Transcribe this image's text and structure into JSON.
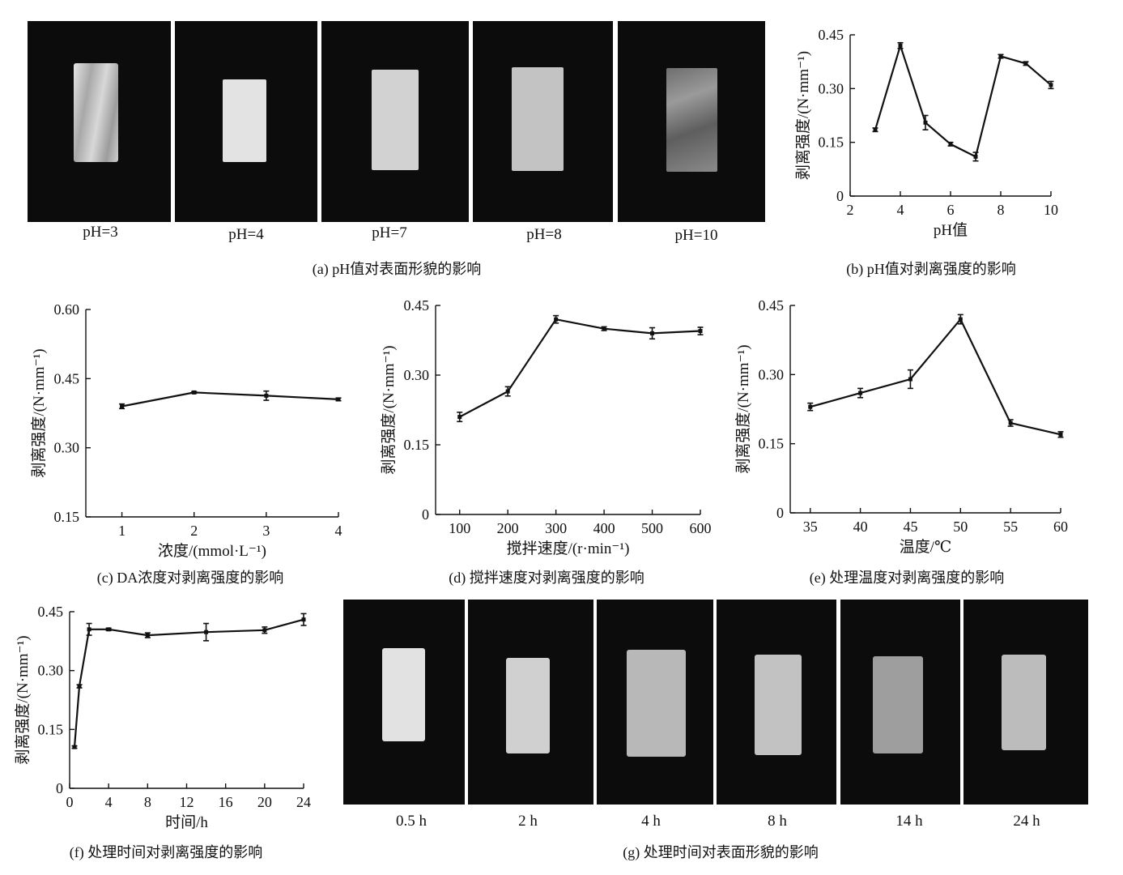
{
  "captions": {
    "a": "(a) pH值对表面形貌的影响",
    "b": "(b) pH值对剥离强度的影响",
    "c": "(c) DA浓度对剥离强度的影响",
    "d": "(d) 搅拌速度对剥离强度的影响",
    "e": "(e) 处理温度对剥离强度的影响",
    "f": "(f) 处理时间对剥离强度的影响",
    "g": "(g) 处理时间对表面形貌的影响"
  },
  "photos_a": [
    "pH=3",
    "pH=4",
    "pH=7",
    "pH=8",
    "pH=10"
  ],
  "photos_g": [
    "0.5 h",
    "2 h",
    "4 h",
    "8 h",
    "14 h",
    "24 h"
  ],
  "chart_data": [
    {
      "id": "b",
      "type": "line",
      "xlabel": "pH值",
      "ylabel": "剥离强度/(N·mm⁻¹)",
      "xlim": [
        2,
        10
      ],
      "xticks": [
        2,
        4,
        6,
        8,
        10
      ],
      "ylim": [
        0,
        0.45
      ],
      "yticks": [
        "0",
        "0.15",
        "0.30",
        "0.45"
      ],
      "x": [
        3,
        4,
        5,
        6,
        7,
        8,
        9,
        10
      ],
      "y": [
        0.185,
        0.42,
        0.205,
        0.145,
        0.11,
        0.39,
        0.37,
        0.31
      ],
      "err": [
        0.005,
        0.008,
        0.02,
        0.005,
        0.012,
        0.005,
        0.005,
        0.01
      ]
    },
    {
      "id": "c",
      "type": "line",
      "xlabel": "浓度/(mmol·L⁻¹)",
      "ylabel": "剥离强度/(N·mm⁻¹)",
      "xlim": [
        0.5,
        4
      ],
      "xticks": [
        1,
        2,
        3,
        4
      ],
      "ylim": [
        0.15,
        0.6
      ],
      "yticks": [
        "0.15",
        "0.30",
        "0.45",
        "0.60"
      ],
      "x": [
        1,
        2,
        3,
        4
      ],
      "y": [
        0.39,
        0.42,
        0.413,
        0.405
      ],
      "err": [
        0.005,
        0.002,
        0.01,
        0.003
      ]
    },
    {
      "id": "d",
      "type": "line",
      "xlabel": "搅拌速度/(r·min⁻¹)",
      "ylabel": "剥离强度/(N·mm⁻¹)",
      "xlim": [
        50,
        600
      ],
      "xticks": [
        100,
        200,
        300,
        400,
        500,
        600
      ],
      "ylim": [
        0,
        0.45
      ],
      "yticks": [
        "0",
        "0.15",
        "0.30",
        "0.45"
      ],
      "x": [
        100,
        200,
        300,
        400,
        500,
        600
      ],
      "y": [
        0.21,
        0.265,
        0.42,
        0.4,
        0.39,
        0.395
      ],
      "err": [
        0.01,
        0.01,
        0.008,
        0.004,
        0.012,
        0.008
      ]
    },
    {
      "id": "e",
      "type": "line",
      "xlabel": "温度/℃",
      "ylabel": "剥离强度/(N·mm⁻¹)",
      "xlim": [
        33,
        60
      ],
      "xticks": [
        35,
        40,
        45,
        50,
        55,
        60
      ],
      "ylim": [
        0,
        0.45
      ],
      "yticks": [
        "0",
        "0.15",
        "0.30",
        "0.45"
      ],
      "x": [
        35,
        40,
        45,
        50,
        55,
        60
      ],
      "y": [
        0.23,
        0.26,
        0.29,
        0.42,
        0.195,
        0.17
      ],
      "err": [
        0.008,
        0.01,
        0.02,
        0.01,
        0.007,
        0.006
      ]
    },
    {
      "id": "f",
      "type": "line",
      "xlabel": "时间/h",
      "ylabel": "剥离强度/(N·mm⁻¹)",
      "xlim": [
        0,
        24
      ],
      "xticks": [
        0,
        4,
        8,
        12,
        16,
        20,
        24
      ],
      "ylim": [
        0,
        0.45
      ],
      "yticks": [
        "0",
        "0.15",
        "0.30",
        "0.45"
      ],
      "x": [
        0.5,
        1,
        2,
        4,
        8,
        14,
        20,
        24
      ],
      "y": [
        0.105,
        0.26,
        0.405,
        0.405,
        0.39,
        0.398,
        0.403,
        0.43
      ],
      "err": [
        0.003,
        0.004,
        0.015,
        0.003,
        0.006,
        0.022,
        0.008,
        0.015
      ]
    }
  ]
}
